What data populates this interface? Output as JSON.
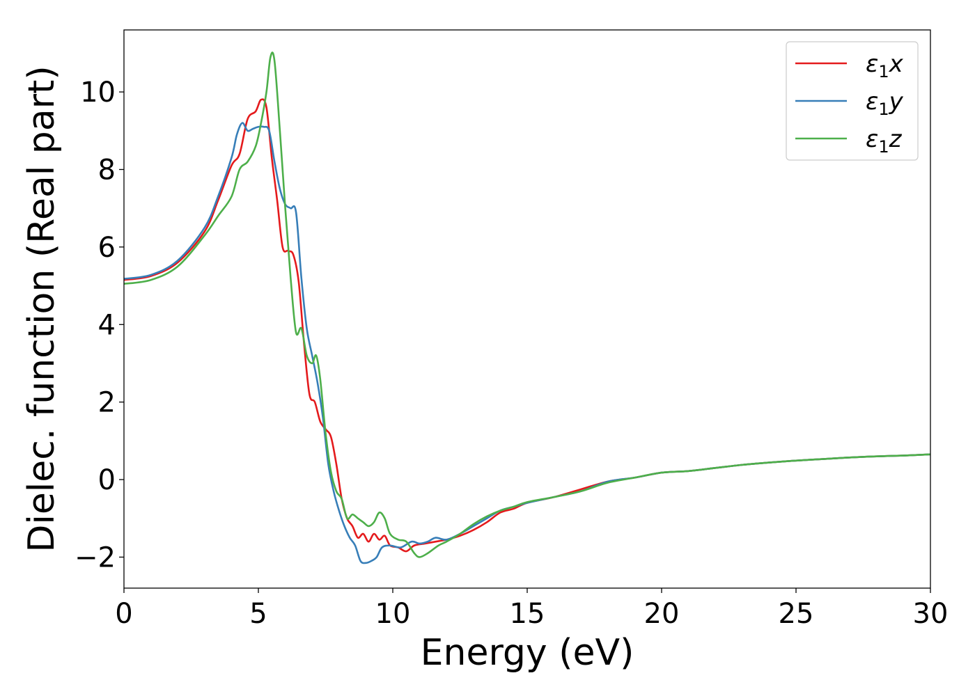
{
  "chart_data": {
    "type": "line",
    "xlabel": "Energy (eV)",
    "ylabel": "Dielec. function (Real part)",
    "xlim": [
      0,
      30
    ],
    "ylim": [
      -2.8,
      11.6
    ],
    "x_ticks": [
      0,
      5,
      10,
      15,
      20,
      25,
      30
    ],
    "x_tick_labels": [
      "0",
      "5",
      "10",
      "15",
      "20",
      "25",
      "30"
    ],
    "y_ticks": [
      -2,
      0,
      2,
      4,
      6,
      8,
      10
    ],
    "y_tick_labels": [
      "−2",
      "0",
      "2",
      "4",
      "6",
      "8",
      "10"
    ],
    "grid": false,
    "legend_position": "top-right",
    "series": [
      {
        "name": "ε₁x",
        "legend_base": "ε",
        "legend_sub": "1",
        "legend_var": "x",
        "color": "#e41a1c",
        "points": [
          [
            0,
            5.15
          ],
          [
            1,
            5.25
          ],
          [
            2,
            5.6
          ],
          [
            3,
            6.4
          ],
          [
            3.5,
            7.2
          ],
          [
            4,
            8.1
          ],
          [
            4.3,
            8.4
          ],
          [
            4.6,
            9.3
          ],
          [
            4.9,
            9.5
          ],
          [
            5.1,
            9.8
          ],
          [
            5.3,
            9.6
          ],
          [
            5.5,
            8.3
          ],
          [
            5.7,
            7.2
          ],
          [
            5.9,
            6.0
          ],
          [
            6.1,
            5.9
          ],
          [
            6.3,
            5.8
          ],
          [
            6.5,
            5.1
          ],
          [
            6.7,
            3.5
          ],
          [
            6.9,
            2.2
          ],
          [
            7.1,
            2.0
          ],
          [
            7.3,
            1.5
          ],
          [
            7.5,
            1.3
          ],
          [
            7.7,
            1.1
          ],
          [
            7.9,
            0.4
          ],
          [
            8.1,
            -0.5
          ],
          [
            8.3,
            -1.0
          ],
          [
            8.5,
            -1.2
          ],
          [
            8.7,
            -1.5
          ],
          [
            8.9,
            -1.4
          ],
          [
            9.1,
            -1.6
          ],
          [
            9.3,
            -1.4
          ],
          [
            9.5,
            -1.55
          ],
          [
            9.7,
            -1.45
          ],
          [
            9.9,
            -1.7
          ],
          [
            10.2,
            -1.75
          ],
          [
            10.5,
            -1.85
          ],
          [
            10.8,
            -1.7
          ],
          [
            11.2,
            -1.65
          ],
          [
            11.6,
            -1.6
          ],
          [
            12,
            -1.55
          ],
          [
            12.5,
            -1.45
          ],
          [
            13,
            -1.3
          ],
          [
            13.5,
            -1.1
          ],
          [
            14,
            -0.85
          ],
          [
            14.5,
            -0.75
          ],
          [
            15,
            -0.6
          ],
          [
            16,
            -0.45
          ],
          [
            17,
            -0.25
          ],
          [
            18,
            -0.05
          ],
          [
            19,
            0.05
          ],
          [
            20,
            0.18
          ],
          [
            21,
            0.22
          ],
          [
            22,
            0.3
          ],
          [
            23,
            0.38
          ],
          [
            24,
            0.44
          ],
          [
            25,
            0.49
          ],
          [
            26,
            0.53
          ],
          [
            27,
            0.57
          ],
          [
            28,
            0.6
          ],
          [
            29,
            0.62
          ],
          [
            30,
            0.65
          ]
        ]
      },
      {
        "name": "ε₁y",
        "legend_base": "ε",
        "legend_sub": "1",
        "legend_var": "y",
        "color": "#377eb8",
        "points": [
          [
            0,
            5.18
          ],
          [
            1,
            5.28
          ],
          [
            2,
            5.65
          ],
          [
            3,
            6.5
          ],
          [
            3.5,
            7.3
          ],
          [
            4,
            8.3
          ],
          [
            4.2,
            8.9
          ],
          [
            4.4,
            9.2
          ],
          [
            4.6,
            9.0
          ],
          [
            4.8,
            9.05
          ],
          [
            5,
            9.1
          ],
          [
            5.2,
            9.1
          ],
          [
            5.4,
            9.0
          ],
          [
            5.6,
            8.2
          ],
          [
            5.8,
            7.5
          ],
          [
            6,
            7.1
          ],
          [
            6.2,
            7.0
          ],
          [
            6.4,
            6.9
          ],
          [
            6.6,
            5.2
          ],
          [
            6.8,
            3.9
          ],
          [
            7,
            3.2
          ],
          [
            7.2,
            2.5
          ],
          [
            7.4,
            1.6
          ],
          [
            7.6,
            0.4
          ],
          [
            7.8,
            -0.3
          ],
          [
            8,
            -0.8
          ],
          [
            8.2,
            -1.2
          ],
          [
            8.4,
            -1.5
          ],
          [
            8.6,
            -1.7
          ],
          [
            8.8,
            -2.1
          ],
          [
            9,
            -2.15
          ],
          [
            9.2,
            -2.1
          ],
          [
            9.4,
            -2.0
          ],
          [
            9.6,
            -1.75
          ],
          [
            9.9,
            -1.7
          ],
          [
            10.3,
            -1.75
          ],
          [
            10.7,
            -1.6
          ],
          [
            11,
            -1.65
          ],
          [
            11.3,
            -1.6
          ],
          [
            11.6,
            -1.5
          ],
          [
            12,
            -1.55
          ],
          [
            12.5,
            -1.4
          ],
          [
            13,
            -1.2
          ],
          [
            13.5,
            -1.0
          ],
          [
            14,
            -0.8
          ],
          [
            14.5,
            -0.7
          ],
          [
            15,
            -0.6
          ],
          [
            16,
            -0.45
          ],
          [
            17,
            -0.3
          ],
          [
            18,
            -0.05
          ],
          [
            19,
            0.05
          ],
          [
            20,
            0.18
          ],
          [
            21,
            0.22
          ],
          [
            22,
            0.3
          ],
          [
            23,
            0.38
          ],
          [
            24,
            0.44
          ],
          [
            25,
            0.49
          ],
          [
            26,
            0.53
          ],
          [
            27,
            0.57
          ],
          [
            28,
            0.6
          ],
          [
            29,
            0.62
          ],
          [
            30,
            0.65
          ]
        ]
      },
      {
        "name": "ε₁z",
        "legend_base": "ε",
        "legend_sub": "1",
        "legend_var": "z",
        "color": "#4daf4a",
        "points": [
          [
            0,
            5.05
          ],
          [
            1,
            5.15
          ],
          [
            2,
            5.5
          ],
          [
            3,
            6.3
          ],
          [
            3.5,
            6.8
          ],
          [
            4,
            7.3
          ],
          [
            4.3,
            8.0
          ],
          [
            4.6,
            8.2
          ],
          [
            4.9,
            8.6
          ],
          [
            5.1,
            9.2
          ],
          [
            5.3,
            10.0
          ],
          [
            5.45,
            10.9
          ],
          [
            5.6,
            10.8
          ],
          [
            5.8,
            9.0
          ],
          [
            6,
            7.0
          ],
          [
            6.2,
            5.2
          ],
          [
            6.4,
            3.8
          ],
          [
            6.6,
            3.9
          ],
          [
            6.8,
            3.2
          ],
          [
            7,
            3.0
          ],
          [
            7.15,
            3.2
          ],
          [
            7.3,
            2.6
          ],
          [
            7.5,
            1.2
          ],
          [
            7.7,
            0.2
          ],
          [
            7.9,
            -0.3
          ],
          [
            8.1,
            -0.5
          ],
          [
            8.3,
            -1.0
          ],
          [
            8.5,
            -0.9
          ],
          [
            8.7,
            -1.0
          ],
          [
            8.9,
            -1.1
          ],
          [
            9.1,
            -1.2
          ],
          [
            9.3,
            -1.1
          ],
          [
            9.5,
            -0.85
          ],
          [
            9.7,
            -1.0
          ],
          [
            9.9,
            -1.4
          ],
          [
            10.2,
            -1.55
          ],
          [
            10.5,
            -1.6
          ],
          [
            10.8,
            -1.9
          ],
          [
            11,
            -2.0
          ],
          [
            11.3,
            -1.9
          ],
          [
            11.7,
            -1.7
          ],
          [
            12,
            -1.6
          ],
          [
            12.5,
            -1.4
          ],
          [
            13,
            -1.15
          ],
          [
            13.5,
            -0.95
          ],
          [
            14,
            -0.8
          ],
          [
            14.5,
            -0.7
          ],
          [
            15,
            -0.58
          ],
          [
            16,
            -0.45
          ],
          [
            17,
            -0.3
          ],
          [
            18,
            -0.08
          ],
          [
            19,
            0.05
          ],
          [
            20,
            0.18
          ],
          [
            21,
            0.22
          ],
          [
            22,
            0.3
          ],
          [
            23,
            0.38
          ],
          [
            24,
            0.44
          ],
          [
            25,
            0.49
          ],
          [
            26,
            0.53
          ],
          [
            27,
            0.57
          ],
          [
            28,
            0.6
          ],
          [
            29,
            0.62
          ],
          [
            30,
            0.65
          ]
        ]
      }
    ]
  }
}
